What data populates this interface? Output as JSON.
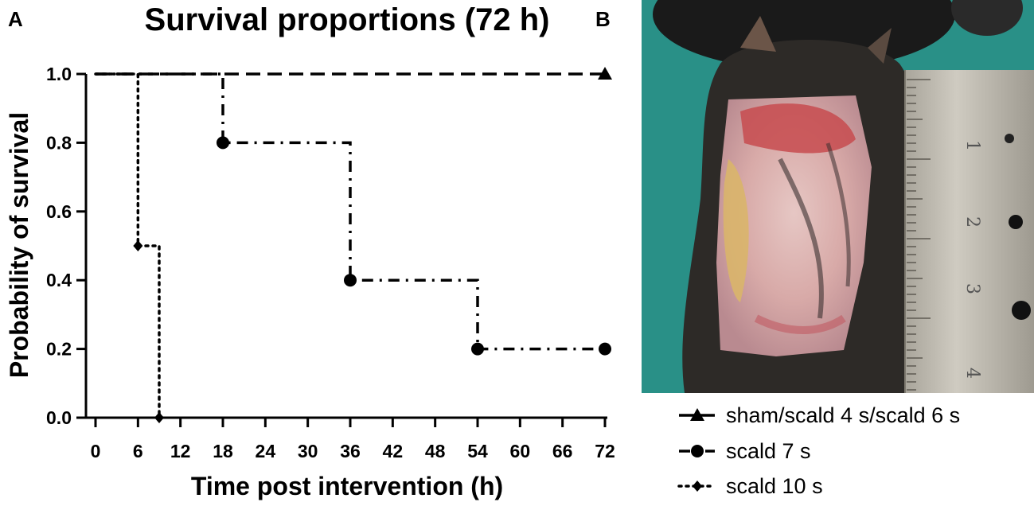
{
  "panels": {
    "a_label": "A",
    "b_label": "B"
  },
  "chart_data": {
    "type": "line",
    "subtype": "kaplan-meier-step",
    "title": "Survival proportions (72 h)",
    "xlabel": "Time post intervention (h)",
    "ylabel": "Probability of survival",
    "xlim": [
      0,
      72
    ],
    "ylim": [
      0,
      1
    ],
    "xticks": [
      0,
      6,
      12,
      18,
      24,
      30,
      36,
      42,
      48,
      54,
      60,
      66,
      72
    ],
    "yticks": [
      "0.0",
      "0.2",
      "0.4",
      "0.6",
      "0.8",
      "1.0"
    ],
    "grid": false,
    "legend_position": "bottom-right",
    "series": [
      {
        "name": "sham/scald 4 s/scald 6 s",
        "marker": "triangle",
        "dash": "dashed",
        "x": [
          0,
          72
        ],
        "y": [
          1.0,
          1.0
        ],
        "marked_points": [
          [
            72,
            1.0
          ]
        ]
      },
      {
        "name": "scald 7 s",
        "marker": "circle",
        "dash": "dashdot",
        "x": [
          0,
          18,
          36,
          54,
          72
        ],
        "y": [
          1.0,
          0.8,
          0.4,
          0.2,
          0.2
        ],
        "marked_points": [
          [
            18,
            0.8
          ],
          [
            36,
            0.4
          ],
          [
            54,
            0.2
          ],
          [
            72,
            0.2
          ]
        ]
      },
      {
        "name": "scald 10 s",
        "marker": "diamond",
        "dash": "dotted",
        "x": [
          0,
          6,
          9
        ],
        "y": [
          1.0,
          0.5,
          0.0
        ],
        "marked_points": [
          [
            6,
            0.5
          ],
          [
            9,
            0.0
          ]
        ]
      }
    ]
  },
  "photo": {
    "description": "photograph of a scald wound on the back of a mouse next to a metal ruler",
    "ruler_marks": [
      "1",
      "2",
      "3",
      "4"
    ]
  },
  "colors": {
    "line": "#000000",
    "photo_background": "#2f9a90",
    "ruler": "#b9b5ab",
    "fur": "#2d2a27",
    "wound_pale": "#d9b3b1",
    "wound_red": "#c74b4f",
    "wound_yellow": "#d9b56a"
  }
}
